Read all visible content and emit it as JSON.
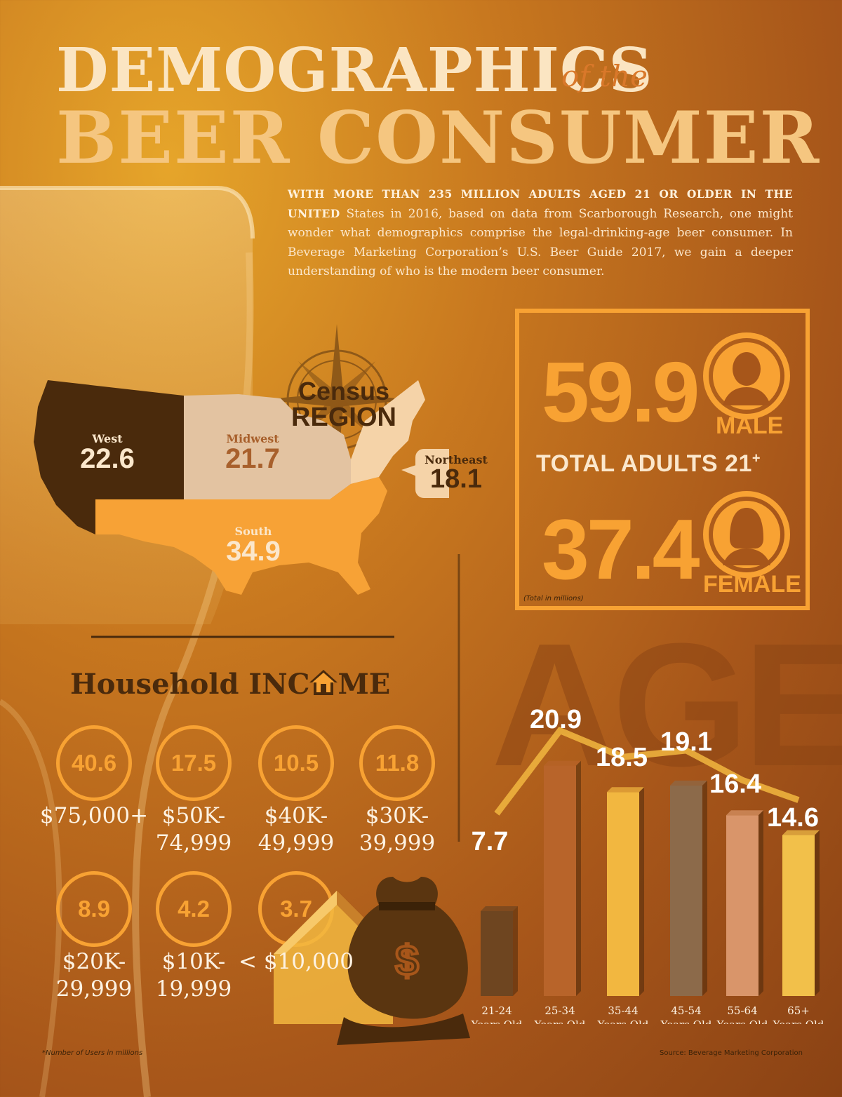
{
  "title": {
    "line1": "DEMOGRAPHICS",
    "of_the": "of the",
    "line2": "BEER CONSUMER"
  },
  "intro": {
    "lead": "WITH MORE THAN 235 MILLION ADULTS AGED 21 OR OLDER IN THE UNITED",
    "body": "States in 2016, based on data from Scarborough Research, one might wonder what demographics comprise the legal-drinking-age beer consumer. In Beverage Marketing Corporation’s U.S. Beer Guide 2017, we gain a deeper understanding of who is the modern beer consumer."
  },
  "census": {
    "title_line1": "Census",
    "title_line2": "REGION",
    "regions": [
      {
        "name": "West",
        "value": "22.6"
      },
      {
        "name": "Midwest",
        "value": "21.7"
      },
      {
        "name": "Northeast",
        "value": "18.1"
      },
      {
        "name": "South",
        "value": "34.9"
      }
    ]
  },
  "adults": {
    "male_value": "59.9",
    "male_label": "MALE",
    "total_label": "TOTAL ADULTS 21",
    "total_sup": "+",
    "female_value": "37.4",
    "female_label": "FEMALE",
    "note": "(Total in millions)"
  },
  "income": {
    "title_a": "Household INC",
    "title_b": "ME",
    "brackets": [
      {
        "value": "40.6",
        "label_1": "$75,000+",
        "label_2": ""
      },
      {
        "value": "17.5",
        "label_1": "$50K-",
        "label_2": "74,999"
      },
      {
        "value": "10.5",
        "label_1": "$40K-",
        "label_2": "49,999"
      },
      {
        "value": "11.8",
        "label_1": "$30K-",
        "label_2": "39,999"
      },
      {
        "value": "8.9",
        "label_1": "$20K-",
        "label_2": "29,999"
      },
      {
        "value": "4.2",
        "label_1": "$10K-",
        "label_2": "19,999"
      },
      {
        "value": "3.7",
        "label_1": "< $10,000",
        "label_2": ""
      }
    ]
  },
  "chart_data": {
    "type": "bar",
    "title": "AGE",
    "categories": [
      "21-24",
      "25-34",
      "35-44",
      "45-54",
      "55-64",
      "65+"
    ],
    "category_sub": "Years Old",
    "values": [
      7.7,
      20.9,
      18.5,
      19.1,
      16.4,
      14.6
    ],
    "value_labels": [
      "7.7",
      "20.9",
      "18.5",
      "19.1",
      "16.4",
      "14.6"
    ],
    "bar_colors": [
      "#6e4520",
      "#b8642a",
      "#f2b740",
      "#8c6a4a",
      "#d9956a",
      "#f2c04a"
    ],
    "legend": "none",
    "grid": false
  },
  "footer": {
    "footnote": "*Number of Users in millions",
    "source": "Source: Beverage Marketing Corporation"
  },
  "colors": {
    "accent": "#f8a233",
    "dark_brown": "#4a2a0c",
    "cream": "#fbe7cc"
  }
}
